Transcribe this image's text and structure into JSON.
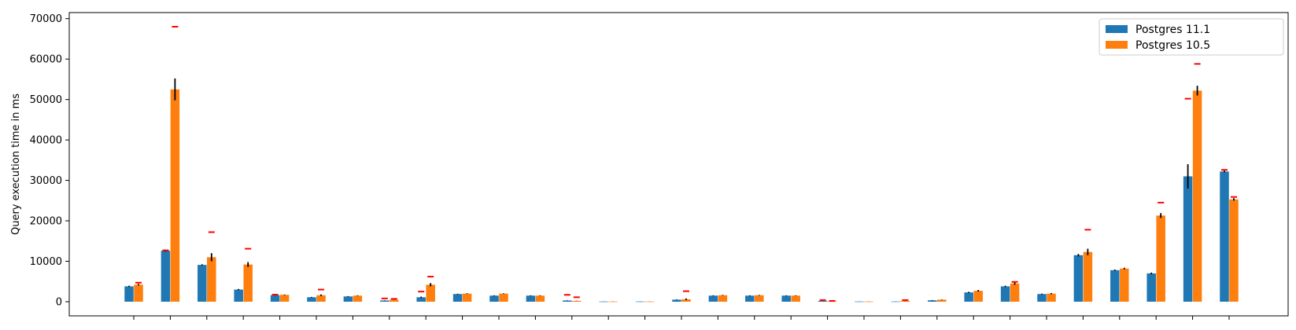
{
  "chart_data": {
    "type": "bar",
    "title": "",
    "xlabel": "",
    "ylabel": "Query execution time in ms",
    "ylim": [
      -3500,
      71500
    ],
    "yticks": [
      0,
      10000,
      20000,
      30000,
      40000,
      50000,
      60000,
      70000
    ],
    "num_groups": 31,
    "grid": false,
    "legend_position": "top-right",
    "series": [
      {
        "name": "Postgres 11.1",
        "color": "#1f77b4",
        "values": [
          3800,
          12600,
          9100,
          3000,
          1600,
          1100,
          1300,
          300,
          1100,
          1900,
          1500,
          1500,
          300,
          50,
          50,
          500,
          1500,
          1500,
          1500,
          200,
          50,
          50,
          350,
          2300,
          3800,
          1900,
          11500,
          7800,
          7000,
          31000,
          32200
        ],
        "errors": [
          150,
          200,
          150,
          150,
          80,
          80,
          80,
          40,
          150,
          80,
          80,
          80,
          40,
          20,
          20,
          60,
          80,
          80,
          80,
          30,
          20,
          20,
          60,
          150,
          150,
          100,
          300,
          150,
          200,
          3000,
          200
        ],
        "max_markers": [
          null,
          12700,
          null,
          null,
          1750,
          null,
          null,
          800,
          2500,
          null,
          null,
          null,
          1700,
          null,
          null,
          null,
          null,
          null,
          null,
          400,
          null,
          null,
          null,
          null,
          null,
          null,
          null,
          null,
          null,
          50200,
          32600
        ]
      },
      {
        "name": "Postgres 10.5",
        "color": "#ff7f0e",
        "values": [
          4200,
          52500,
          11000,
          9200,
          1700,
          1600,
          1500,
          500,
          4200,
          2000,
          2000,
          1500,
          200,
          50,
          50,
          600,
          1600,
          1600,
          1500,
          100,
          50,
          200,
          500,
          2700,
          4500,
          2000,
          12300,
          8200,
          21300,
          52200,
          25300
        ],
        "errors": [
          200,
          2700,
          1000,
          600,
          80,
          200,
          80,
          40,
          400,
          80,
          80,
          80,
          30,
          20,
          20,
          200,
          80,
          80,
          80,
          20,
          20,
          40,
          60,
          200,
          300,
          150,
          800,
          200,
          600,
          1200,
          300
        ],
        "max_markers": [
          4700,
          68000,
          17200,
          13100,
          null,
          3000,
          null,
          700,
          6200,
          null,
          null,
          null,
          1100,
          null,
          null,
          2600,
          null,
          null,
          null,
          200,
          null,
          400,
          null,
          null,
          4900,
          null,
          17800,
          null,
          24500,
          58800,
          25900
        ]
      }
    ]
  }
}
